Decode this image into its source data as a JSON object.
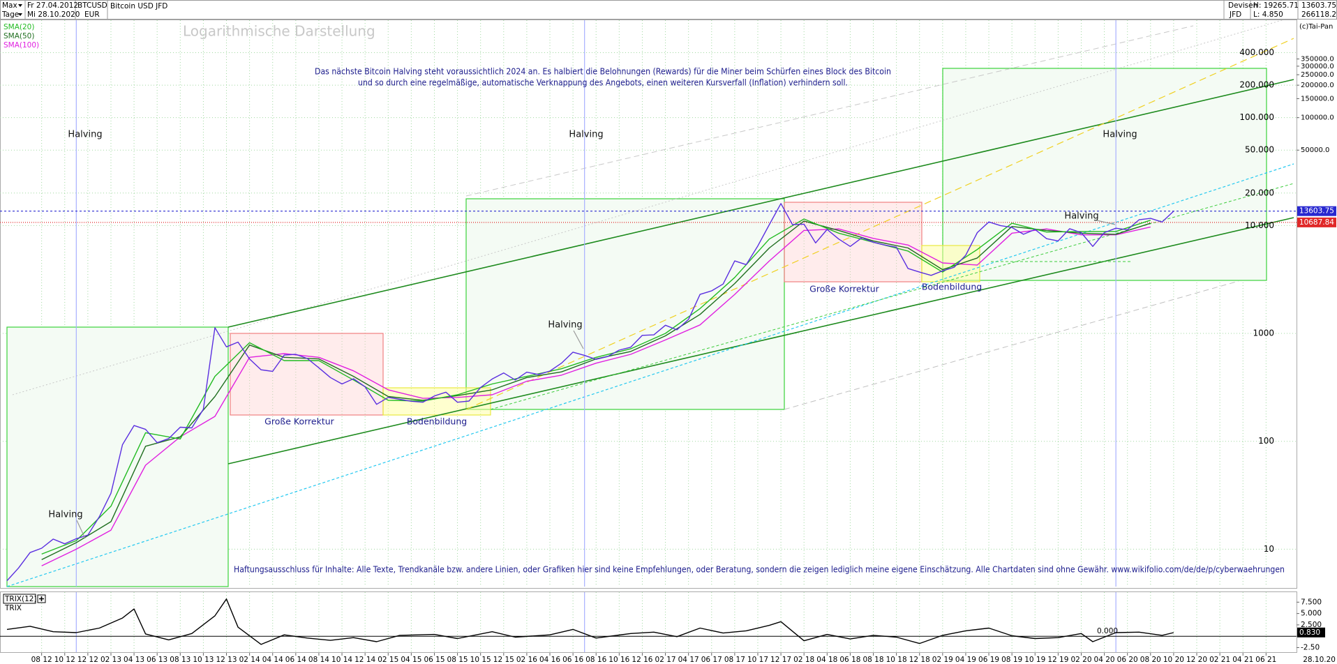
{
  "header": {
    "period": "Max",
    "interval": "Tage",
    "start_date": "Fr 27.04.2012",
    "end_date": "Mi 28.10.2020",
    "symbol": "BTCUSD",
    "currency": "EUR",
    "name": "Bitcoin USD JFD",
    "market": "Devisen",
    "broker": "JFD",
    "high": "H: 19265.71",
    "low": "L: 4.850",
    "last": "13603.75",
    "change": "266118.2%",
    "copyright": "(c)Tai-Pan"
  },
  "chart_data": [
    {
      "type": "line",
      "log_scale": true,
      "grid": true,
      "xlim": [
        "2012-05",
        "2021-09"
      ],
      "ylim": [
        4.5,
        800000
      ],
      "xticks": [
        {
          "value": "2012-08",
          "label": "08 12"
        },
        {
          "value": "2012-10",
          "label": "10 12"
        },
        {
          "value": "2012-12",
          "label": "12 12"
        },
        {
          "value": "2013-02",
          "label": "02 13"
        },
        {
          "value": "2013-04",
          "label": "04 13"
        },
        {
          "value": "2013-06",
          "label": "06 13"
        },
        {
          "value": "2013-08",
          "label": "08 13"
        },
        {
          "value": "2013-10",
          "label": "10 13"
        },
        {
          "value": "2013-12",
          "label": "12 13"
        },
        {
          "value": "2014-02",
          "label": "02 14"
        },
        {
          "value": "2014-04",
          "label": "04 14"
        },
        {
          "value": "2014-06",
          "label": "06 14"
        },
        {
          "value": "2014-08",
          "label": "08 14"
        },
        {
          "value": "2014-10",
          "label": "10 14"
        },
        {
          "value": "2014-12",
          "label": "12 14"
        },
        {
          "value": "2015-02",
          "label": "02 15"
        },
        {
          "value": "2015-04",
          "label": "04 15"
        },
        {
          "value": "2015-06",
          "label": "06 15"
        },
        {
          "value": "2015-08",
          "label": "08 15"
        },
        {
          "value": "2015-10",
          "label": "10 15"
        },
        {
          "value": "2015-12",
          "label": "12 15"
        },
        {
          "value": "2016-02",
          "label": "02 16"
        },
        {
          "value": "2016-04",
          "label": "04 16"
        },
        {
          "value": "2016-06",
          "label": "06 16"
        },
        {
          "value": "2016-08",
          "label": "08 16"
        },
        {
          "value": "2016-10",
          "label": "10 16"
        },
        {
          "value": "2016-12",
          "label": "12 16"
        },
        {
          "value": "2017-02",
          "label": "02 17"
        },
        {
          "value": "2017-04",
          "label": "04 17"
        },
        {
          "value": "2017-06",
          "label": "06 17"
        },
        {
          "value": "2017-08",
          "label": "08 17"
        },
        {
          "value": "2017-10",
          "label": "10 17"
        },
        {
          "value": "2017-12",
          "label": "12 17"
        },
        {
          "value": "2018-02",
          "label": "02 18"
        },
        {
          "value": "2018-04",
          "label": "04 18"
        },
        {
          "value": "2018-06",
          "label": "06 18"
        },
        {
          "value": "2018-08",
          "label": "08 18"
        },
        {
          "value": "2018-10",
          "label": "10 18"
        },
        {
          "value": "2018-12",
          "label": "12 18"
        },
        {
          "value": "2019-02",
          "label": "02 19"
        },
        {
          "value": "2019-04",
          "label": "04 19"
        },
        {
          "value": "2019-06",
          "label": "06 19"
        },
        {
          "value": "2019-08",
          "label": "08 19"
        },
        {
          "value": "2019-10",
          "label": "10 19"
        },
        {
          "value": "2019-12",
          "label": "12 19"
        },
        {
          "value": "2020-02",
          "label": "02 20"
        },
        {
          "value": "2020-04",
          "label": "04 20"
        },
        {
          "value": "2020-06",
          "label": "06 20"
        },
        {
          "value": "2020-08",
          "label": "08 20"
        },
        {
          "value": "2020-10",
          "label": "10 20"
        },
        {
          "value": "2020-12",
          "label": "12 20"
        },
        {
          "value": "2021-02",
          "label": "02 21"
        },
        {
          "value": "2021-04",
          "label": "04 21"
        },
        {
          "value": "2021-06",
          "label": "06 21"
        }
      ],
      "x_end_label": "28.10.20",
      "yticks": [
        10,
        100,
        1000,
        {
          "value": 10000,
          "label": "10.000"
        },
        {
          "value": 20000,
          "label": "20.000"
        },
        {
          "value": 50000,
          "label": "50.000"
        },
        {
          "value": 100000,
          "label": "100.000"
        },
        {
          "value": 200000,
          "label": "200.000"
        },
        {
          "value": 400000,
          "label": "400.000"
        }
      ],
      "right_ticks": [
        {
          "value": 50000,
          "label": "50000.0"
        },
        {
          "value": 100000,
          "label": "100000.0"
        },
        {
          "value": 150000,
          "label": "150000.0"
        },
        {
          "value": 200000,
          "label": "200000.0"
        },
        {
          "value": 250000,
          "label": "250000.0"
        },
        {
          "value": 300000,
          "label": "300000.0"
        },
        {
          "value": 350000,
          "label": "350000.0"
        }
      ],
      "series": [
        {
          "color": "#5a2ee0",
          "x": [
            "2012-05",
            "2012-06",
            "2012-07",
            "2012-08",
            "2012-09",
            "2012-10",
            "2012-11",
            "2012-12",
            "2013-01",
            "2013-02",
            "2013-03",
            "2013-04",
            "2013-05",
            "2013-06",
            "2013-07",
            "2013-08",
            "2013-09",
            "2013-10",
            "2013-11",
            "2013-12",
            "2014-01",
            "2014-02",
            "2014-03",
            "2014-04",
            "2014-05",
            "2014-06",
            "2014-07",
            "2014-08",
            "2014-09",
            "2014-10",
            "2014-11",
            "2014-12",
            "2015-01",
            "2015-02",
            "2015-03",
            "2015-04",
            "2015-05",
            "2015-06",
            "2015-07",
            "2015-08",
            "2015-09",
            "2015-10",
            "2015-11",
            "2015-12",
            "2016-01",
            "2016-02",
            "2016-03",
            "2016-04",
            "2016-05",
            "2016-06",
            "2016-07",
            "2016-08",
            "2016-09",
            "2016-10",
            "2016-11",
            "2016-12",
            "2017-01",
            "2017-02",
            "2017-03",
            "2017-04",
            "2017-05",
            "2017-06",
            "2017-07",
            "2017-08",
            "2017-09",
            "2017-10",
            "2017-11",
            "2017-12",
            "2018-01",
            "2018-02",
            "2018-03",
            "2018-04",
            "2018-05",
            "2018-06",
            "2018-07",
            "2018-08",
            "2018-09",
            "2018-10",
            "2018-11",
            "2018-12",
            "2019-01",
            "2019-02",
            "2019-03",
            "2019-04",
            "2019-05",
            "2019-06",
            "2019-07",
            "2019-08",
            "2019-09",
            "2019-10",
            "2019-11",
            "2019-12",
            "2020-01",
            "2020-02",
            "2020-03",
            "2020-04",
            "2020-05",
            "2020-06",
            "2020-07",
            "2020-08",
            "2020-09",
            "2020-10"
          ],
          "values": [
            5.1,
            6.7,
            9.3,
            10.2,
            12.4,
            11.2,
            12.5,
            13.5,
            20,
            33,
            93,
            140,
            129,
            97,
            106,
            135,
            133,
            198,
            1130,
            750,
            830,
            580,
            460,
            445,
            630,
            640,
            585,
            480,
            390,
            340,
            380,
            320,
            220,
            255,
            245,
            235,
            230,
            263,
            285,
            230,
            236,
            315,
            378,
            430,
            370,
            437,
            416,
            448,
            530,
            670,
            625,
            575,
            610,
            700,
            745,
            960,
            970,
            1190,
            1080,
            1350,
            2300,
            2480,
            2870,
            4700,
            4340,
            6470,
            10200,
            16000,
            10200,
            10300,
            6900,
            9200,
            7500,
            6400,
            7700,
            7000,
            6600,
            6300,
            4000,
            3700,
            3450,
            3800,
            4100,
            5300,
            8600,
            10800,
            10000,
            9600,
            8300,
            9200,
            7550,
            7200,
            9350,
            8600,
            6400,
            8600,
            9450,
            9140,
            11300,
            11650,
            10780,
            13600
          ]
        },
        {
          "name": "SMA(20)",
          "color": "#22bb22",
          "x": [
            "2012-08",
            "2012-11",
            "2013-02",
            "2013-05",
            "2013-08",
            "2013-11",
            "2014-02",
            "2014-05",
            "2014-08",
            "2014-11",
            "2015-02",
            "2015-05",
            "2015-08",
            "2015-11",
            "2016-02",
            "2016-05",
            "2016-08",
            "2016-11",
            "2017-02",
            "2017-05",
            "2017-08",
            "2017-11",
            "2018-02",
            "2018-05",
            "2018-08",
            "2018-11",
            "2019-02",
            "2019-05",
            "2019-08",
            "2019-11",
            "2020-02",
            "2020-05",
            "2020-08"
          ],
          "values": [
            9,
            12,
            25,
            120,
            105,
            400,
            820,
            560,
            560,
            370,
            240,
            236,
            270,
            340,
            400,
            470,
            600,
            720,
            1000,
            1700,
            3300,
            7500,
            11500,
            8500,
            7000,
            5800,
            3700,
            6000,
            10500,
            8700,
            8800,
            8800,
            11200
          ]
        },
        {
          "name": "SMA(50)",
          "color": "#1f6e1f",
          "x": [
            "2012-08",
            "2012-11",
            "2013-02",
            "2013-05",
            "2013-08",
            "2013-11",
            "2014-02",
            "2014-05",
            "2014-08",
            "2014-11",
            "2015-02",
            "2015-05",
            "2015-08",
            "2015-11",
            "2016-02",
            "2016-05",
            "2016-08",
            "2016-11",
            "2017-02",
            "2017-05",
            "2017-08",
            "2017-11",
            "2018-02",
            "2018-05",
            "2018-08",
            "2018-11",
            "2019-02",
            "2019-05",
            "2019-08",
            "2019-11",
            "2020-02",
            "2020-05",
            "2020-08"
          ],
          "values": [
            8,
            11.5,
            18,
            90,
            110,
            260,
            780,
            600,
            580,
            400,
            260,
            240,
            265,
            300,
            390,
            440,
            580,
            680,
            950,
            1500,
            2900,
            6200,
            11000,
            9000,
            7200,
            6200,
            3900,
            5000,
            9800,
            9000,
            8500,
            8300,
            10500
          ]
        },
        {
          "name": "SMA(100)",
          "color": "#e020e0",
          "x": [
            "2012-08",
            "2012-11",
            "2013-02",
            "2013-05",
            "2013-08",
            "2013-11",
            "2014-02",
            "2014-05",
            "2014-08",
            "2014-11",
            "2015-02",
            "2015-05",
            "2015-08",
            "2015-11",
            "2016-02",
            "2016-05",
            "2016-08",
            "2016-11",
            "2017-02",
            "2017-05",
            "2017-08",
            "2017-11",
            "2018-02",
            "2018-05",
            "2018-08",
            "2018-11",
            "2019-02",
            "2019-05",
            "2019-08",
            "2019-11",
            "2020-02",
            "2020-05",
            "2020-08"
          ],
          "values": [
            7,
            10,
            15,
            60,
            110,
            170,
            600,
            650,
            600,
            450,
            300,
            250,
            255,
            270,
            360,
            410,
            530,
            640,
            870,
            1200,
            2300,
            4700,
            9000,
            9300,
            7600,
            6600,
            4500,
            4300,
            8500,
            9300,
            8200,
            8200,
            9700
          ]
        }
      ],
      "halvings": [
        "2012-11",
        "2016-07",
        "2020-05"
      ],
      "price_lines": [
        {
          "value": 13603.75,
          "color": "#2828d0"
        },
        {
          "value": 10687.84,
          "color": "#e02828"
        }
      ],
      "annotations": [
        "Logarithmische Darstellung",
        "Das nächste Bitcoin Halving steht voraussichtlich 2024 an. Es halbiert die Belohnungen (Rewards) für die Miner beim Schürfen eines Block des Bitcoin",
        "und so durch eine regelmäßige, automatische Verknappung des Angebots, einen weiteren Kursverfall (Inflation) verhindern soll.",
        "Halving",
        "Halving",
        "Halving",
        "Halving",
        "Halving",
        "Halving",
        "Große Korrektur",
        "Bodenbildung",
        "Große Korrektur",
        "Bodenbildung",
        "Haftungsausschluss für Inhalte: Alle Texte, Trendkanäle bzw. andere Linien, oder Grafiken hier sind keine Empfehlungen, oder Beratung, sondern die zeigen lediglich meine eigene Einschätzung. Alle Chartdaten sind ohne Gewähr.  www.wikifolio.com/de/de/p/cyberwaehrungen"
      ]
    },
    {
      "type": "line",
      "title": "TRIX(12)",
      "label": "TRIX",
      "color": "#000000",
      "ylim": [
        -3.5,
        9.7
      ],
      "yticks": [
        {
          "value": 7.5,
          "label": "7.500"
        },
        {
          "value": 5,
          "label": "5.000"
        },
        {
          "value": 2.5,
          "label": "2.500"
        },
        {
          "value": -2.5,
          "label": "-2.50"
        }
      ],
      "zero": {
        "value": 0,
        "label": "0.000"
      },
      "last": {
        "value": 0.83,
        "label": "0.830"
      },
      "x": [
        "2012-05",
        "2012-07",
        "2012-09",
        "2012-11",
        "2013-01",
        "2013-03",
        "2013-04",
        "2013-05",
        "2013-07",
        "2013-09",
        "2013-11",
        "2013-12",
        "2014-01",
        "2014-03",
        "2014-05",
        "2014-07",
        "2014-09",
        "2014-11",
        "2015-01",
        "2015-03",
        "2015-06",
        "2015-08",
        "2015-11",
        "2016-01",
        "2016-04",
        "2016-06",
        "2016-08",
        "2016-11",
        "2017-01",
        "2017-03",
        "2017-05",
        "2017-07",
        "2017-09",
        "2017-11",
        "2017-12",
        "2018-02",
        "2018-04",
        "2018-06",
        "2018-08",
        "2018-10",
        "2018-12",
        "2019-02",
        "2019-04",
        "2019-06",
        "2019-08",
        "2019-10",
        "2019-12",
        "2020-02",
        "2020-03",
        "2020-05",
        "2020-07",
        "2020-09",
        "2020-10"
      ],
      "values": [
        1.5,
        2.2,
        1.0,
        0.8,
        1.8,
        4.0,
        6.0,
        0.5,
        -0.8,
        0.6,
        4.5,
        8.2,
        2.0,
        -1.8,
        0.3,
        -0.4,
        -0.9,
        -0.3,
        -1.2,
        0.2,
        0.4,
        -0.5,
        1.0,
        -0.2,
        0.3,
        1.5,
        -0.4,
        0.6,
        0.9,
        -0.1,
        1.8,
        0.7,
        1.2,
        2.4,
        3.2,
        -1.0,
        0.4,
        -0.6,
        0.2,
        -0.2,
        -1.6,
        0.2,
        1.2,
        1.8,
        0.1,
        -0.5,
        -0.3,
        0.6,
        -1.2,
        0.8,
        0.9,
        0.2,
        0.8
      ]
    }
  ]
}
